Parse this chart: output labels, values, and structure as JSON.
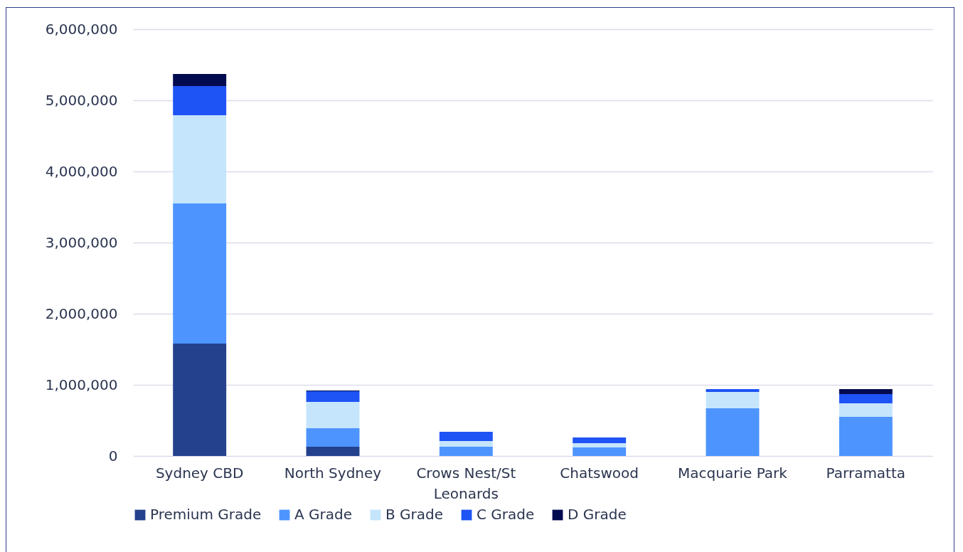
{
  "chart_data": {
    "type": "bar",
    "stacked": true,
    "categories": [
      "Sydney CBD",
      "North Sydney",
      "Crows Nest/St Leonards",
      "Chatswood",
      "Macquarie Park",
      "Parramatta"
    ],
    "series": [
      {
        "name": "Premium Grade",
        "color": "#24418d",
        "values": [
          1580000,
          130000,
          null,
          null,
          null,
          null
        ]
      },
      {
        "name": "A Grade",
        "color": "#4d94ff",
        "values": [
          1970000,
          260000,
          130000,
          120000,
          670000,
          550000
        ]
      },
      {
        "name": "B Grade",
        "color": "#c5e5fd",
        "values": [
          1240000,
          370000,
          80000,
          60000,
          230000,
          190000
        ]
      },
      {
        "name": "C Grade",
        "color": "#1e54f5",
        "values": [
          410000,
          150000,
          130000,
          80000,
          40000,
          130000
        ]
      },
      {
        "name": "D Grade",
        "color": "#020a50",
        "values": [
          170000,
          10000,
          null,
          null,
          null,
          70000
        ]
      }
    ],
    "ylim": [
      0,
      6000000
    ],
    "yticks": [
      0,
      {
        "value": 1000000,
        "label": "1,000,000"
      },
      {
        "value": 2000000,
        "label": "2,000,000"
      },
      {
        "value": 3000000,
        "label": "3,000,000"
      },
      {
        "value": 4000000,
        "label": "4,000,000"
      },
      {
        "value": 5000000,
        "label": "5,000,000"
      },
      {
        "value": 6000000,
        "label": "6,000,000"
      }
    ],
    "grid": "y",
    "legend": "bottom"
  }
}
